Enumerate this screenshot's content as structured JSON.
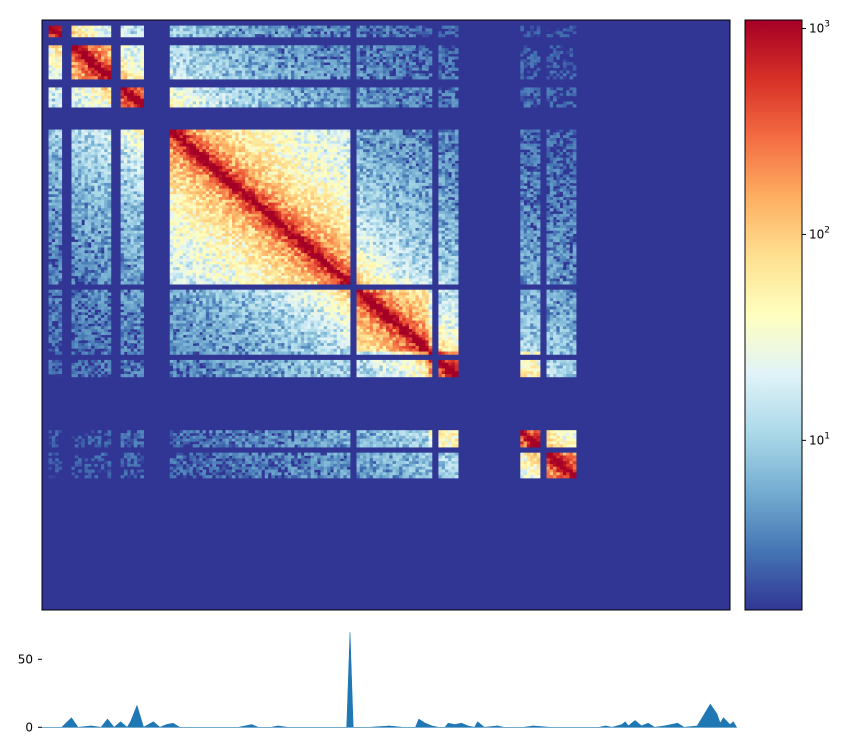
{
  "chart_data": [
    {
      "type": "heatmap",
      "title": "",
      "xlabel": "",
      "ylabel": "",
      "grid": false,
      "colormap": "RdYlBu_r",
      "colorbar": {
        "scale": "log",
        "range": [
          1.5,
          1100
        ],
        "ticks": [
          {
            "value": 10,
            "base": "10",
            "exp": "1"
          },
          {
            "value": 100,
            "base": "10",
            "exp": "2"
          },
          {
            "value": 1000,
            "base": "10",
            "exp": "3"
          }
        ]
      },
      "matrix_size": 210,
      "masked_rows": [
        0,
        1,
        6,
        7,
        8,
        21,
        22,
        23,
        31,
        32,
        33,
        34,
        35,
        36,
        37,
        38,
        94,
        95,
        119,
        120,
        127,
        128,
        129,
        130,
        131,
        132,
        133,
        134,
        135,
        136,
        137,
        138,
        139,
        140,
        141,
        142,
        143,
        144,
        145,
        152,
        153,
        163,
        164,
        164,
        165,
        166,
        167,
        168,
        169,
        170,
        171,
        172,
        173,
        174,
        175,
        176,
        177,
        178,
        179,
        180,
        181,
        182,
        183,
        184,
        185,
        186,
        187,
        188,
        189,
        190,
        191,
        192,
        193,
        194,
        195,
        196,
        197,
        198,
        199,
        200,
        201,
        202,
        203,
        204,
        205,
        206,
        207,
        208,
        209
      ],
      "domains": [
        [
          0,
          8
        ],
        [
          8,
          22
        ],
        [
          22,
          37
        ],
        [
          37,
          95
        ],
        [
          95,
          118
        ],
        [
          118,
          152
        ],
        [
          152,
          166
        ],
        [
          166,
          210
        ]
      ],
      "colors": {
        "masked": "#313695"
      }
    },
    {
      "type": "area",
      "title": "",
      "xlabel": "",
      "ylabel": "",
      "y_ticks": [
        0,
        50
      ],
      "ylim": [
        -2,
        73
      ],
      "color": "#1f77b4",
      "x_range": [
        0,
        210
      ],
      "points": [
        [
          0,
          0
        ],
        [
          6,
          0
        ],
        [
          9,
          7
        ],
        [
          11,
          0
        ],
        [
          15,
          1
        ],
        [
          18,
          0
        ],
        [
          20,
          6
        ],
        [
          22,
          0
        ],
        [
          24,
          4
        ],
        [
          26,
          0
        ],
        [
          27,
          4
        ],
        [
          29,
          16
        ],
        [
          31,
          0
        ],
        [
          34,
          4
        ],
        [
          36,
          0
        ],
        [
          38,
          2
        ],
        [
          40,
          3
        ],
        [
          42,
          0
        ],
        [
          46,
          0
        ],
        [
          48,
          0
        ],
        [
          55,
          0
        ],
        [
          60,
          0
        ],
        [
          64,
          2
        ],
        [
          66,
          0
        ],
        [
          70,
          0
        ],
        [
          72,
          1
        ],
        [
          75,
          0
        ],
        [
          80,
          0
        ],
        [
          84,
          0
        ],
        [
          89,
          0
        ],
        [
          93,
          0
        ],
        [
          94,
          70
        ],
        [
          95,
          0
        ],
        [
          100,
          0
        ],
        [
          106,
          1
        ],
        [
          110,
          0
        ],
        [
          114,
          0
        ],
        [
          115,
          6
        ],
        [
          117,
          3
        ],
        [
          119,
          1
        ],
        [
          121,
          0
        ],
        [
          123,
          0
        ],
        [
          124,
          3
        ],
        [
          126,
          2
        ],
        [
          128,
          3
        ],
        [
          130,
          1
        ],
        [
          132,
          0
        ],
        [
          133,
          4
        ],
        [
          135,
          0
        ],
        [
          139,
          1
        ],
        [
          141,
          0
        ],
        [
          147,
          0
        ],
        [
          150,
          1
        ],
        [
          155,
          0
        ],
        [
          160,
          0
        ],
        [
          165,
          0
        ],
        [
          170,
          0
        ],
        [
          172,
          1
        ],
        [
          174,
          0
        ],
        [
          177,
          2
        ],
        [
          178,
          4
        ],
        [
          179,
          1
        ],
        [
          181,
          5
        ],
        [
          183,
          1
        ],
        [
          185,
          3
        ],
        [
          187,
          0
        ],
        [
          190,
          1
        ],
        [
          194,
          3
        ],
        [
          196,
          0
        ],
        [
          200,
          1
        ],
        [
          204,
          17
        ],
        [
          206,
          10
        ],
        [
          207,
          3
        ],
        [
          208,
          7
        ],
        [
          210,
          2
        ],
        [
          211,
          4
        ],
        [
          212,
          0
        ]
      ]
    }
  ],
  "colors": {
    "axis": "#000000",
    "background": "#ffffff"
  }
}
